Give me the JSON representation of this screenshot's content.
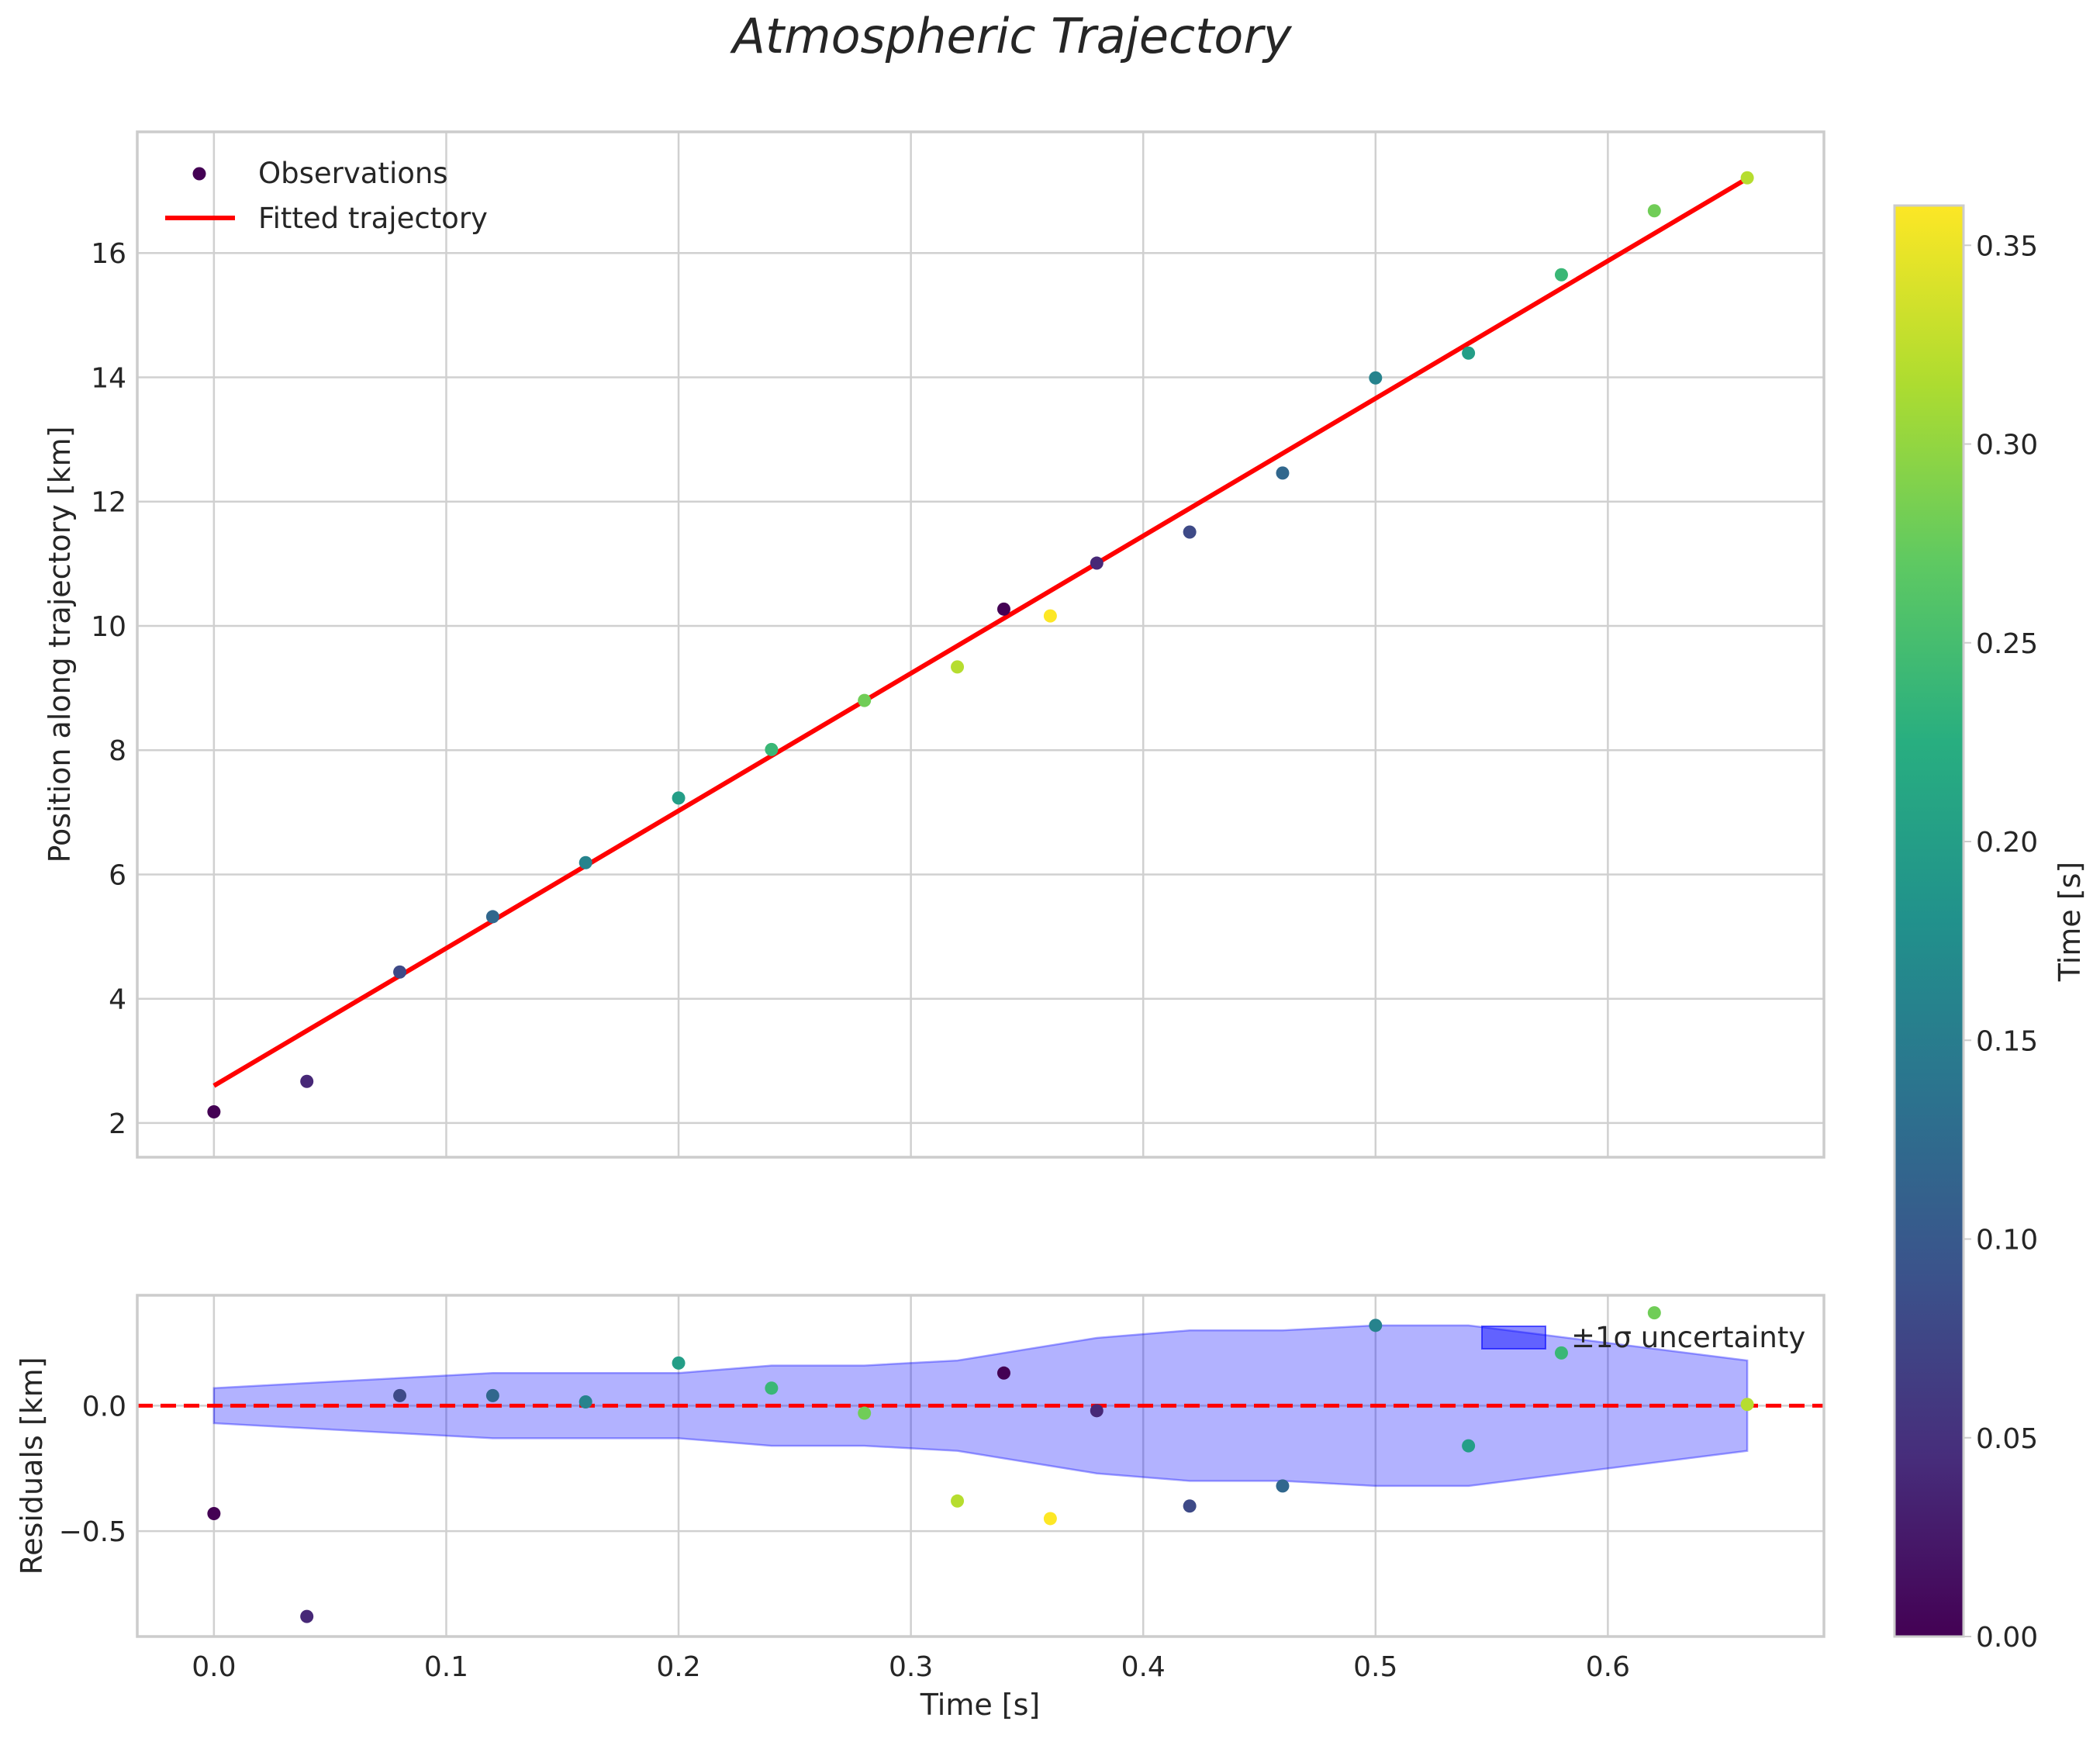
{
  "title": "Atmospheric Trajectory",
  "chart_data": [
    {
      "type": "scatter",
      "panel": "top",
      "xlabel": "",
      "ylabel": "Position along trajectory [km]",
      "xlim": [
        -0.033,
        0.693
      ],
      "ylim": [
        1.45,
        17.95
      ],
      "xticks": [
        0.0,
        0.1,
        0.2,
        0.3,
        0.4,
        0.5,
        0.6
      ],
      "yticks": [
        2,
        4,
        6,
        8,
        10,
        12,
        14,
        16
      ],
      "ytick_labels": [
        "2",
        "4",
        "6",
        "8",
        "10",
        "12",
        "14",
        "16"
      ],
      "legend": [
        "Observations",
        "Fitted trajectory"
      ],
      "legend_position": "top-left",
      "observations": {
        "name": "Observations",
        "points": [
          {
            "x": 0.0,
            "y": 2.18,
            "c": 0.0
          },
          {
            "x": 0.04,
            "y": 2.67,
            "c": 0.04
          },
          {
            "x": 0.08,
            "y": 4.43,
            "c": 0.08
          },
          {
            "x": 0.12,
            "y": 5.32,
            "c": 0.12
          },
          {
            "x": 0.16,
            "y": 6.19,
            "c": 0.16
          },
          {
            "x": 0.2,
            "y": 7.23,
            "c": 0.2
          },
          {
            "x": 0.24,
            "y": 8.01,
            "c": 0.24
          },
          {
            "x": 0.28,
            "y": 8.8,
            "c": 0.28
          },
          {
            "x": 0.32,
            "y": 9.34,
            "c": 0.32
          },
          {
            "x": 0.34,
            "y": 10.27,
            "c": 0.0
          },
          {
            "x": 0.36,
            "y": 10.16,
            "c": 0.36
          },
          {
            "x": 0.38,
            "y": 11.01,
            "c": 0.04
          },
          {
            "x": 0.42,
            "y": 11.51,
            "c": 0.08
          },
          {
            "x": 0.46,
            "y": 12.46,
            "c": 0.12
          },
          {
            "x": 0.5,
            "y": 13.99,
            "c": 0.16
          },
          {
            "x": 0.54,
            "y": 14.39,
            "c": 0.2
          },
          {
            "x": 0.58,
            "y": 15.65,
            "c": 0.24
          },
          {
            "x": 0.62,
            "y": 16.68,
            "c": 0.28
          },
          {
            "x": 0.66,
            "y": 17.21,
            "c": 0.32
          }
        ]
      },
      "fit": {
        "name": "Fitted trajectory",
        "color": "#ff0000",
        "x": [
          0.0,
          0.66
        ],
        "y": [
          2.6,
          17.2
        ]
      }
    },
    {
      "type": "scatter",
      "panel": "bottom",
      "xlabel": "Time [s]",
      "ylabel": "Residuals [km]",
      "xlim": [
        -0.033,
        0.693
      ],
      "ylim": [
        -0.92,
        0.44
      ],
      "xticks": [
        0.0,
        0.1,
        0.2,
        0.3,
        0.4,
        0.5,
        0.6
      ],
      "xtick_labels": [
        "0.0",
        "0.1",
        "0.2",
        "0.3",
        "0.4",
        "0.5",
        "0.6"
      ],
      "yticks": [
        -0.5,
        0.0
      ],
      "ytick_labels": [
        "−0.5",
        "0.0"
      ],
      "legend": [
        "±1σ uncertainty"
      ],
      "legend_position": "top-right",
      "zero_line_color": "#ff0000",
      "residuals": [
        {
          "x": 0.0,
          "y": -0.43,
          "c": 0.0
        },
        {
          "x": 0.04,
          "y": -0.84,
          "c": 0.04
        },
        {
          "x": 0.08,
          "y": 0.04,
          "c": 0.08
        },
        {
          "x": 0.12,
          "y": 0.04,
          "c": 0.12
        },
        {
          "x": 0.16,
          "y": 0.015,
          "c": 0.16
        },
        {
          "x": 0.2,
          "y": 0.17,
          "c": 0.2
        },
        {
          "x": 0.24,
          "y": 0.07,
          "c": 0.24
        },
        {
          "x": 0.28,
          "y": -0.03,
          "c": 0.28
        },
        {
          "x": 0.32,
          "y": -0.38,
          "c": 0.32
        },
        {
          "x": 0.34,
          "y": 0.13,
          "c": 0.0
        },
        {
          "x": 0.36,
          "y": -0.45,
          "c": 0.36
        },
        {
          "x": 0.38,
          "y": -0.02,
          "c": 0.04
        },
        {
          "x": 0.42,
          "y": -0.4,
          "c": 0.08
        },
        {
          "x": 0.46,
          "y": -0.32,
          "c": 0.12
        },
        {
          "x": 0.5,
          "y": 0.32,
          "c": 0.16
        },
        {
          "x": 0.54,
          "y": -0.16,
          "c": 0.2
        },
        {
          "x": 0.58,
          "y": 0.21,
          "c": 0.24
        },
        {
          "x": 0.62,
          "y": 0.37,
          "c": 0.28
        },
        {
          "x": 0.66,
          "y": 0.005,
          "c": 0.32
        }
      ],
      "uncertainty": {
        "name": "±1σ uncertainty",
        "color": "#0000ff",
        "x": [
          0.0,
          0.12,
          0.2,
          0.24,
          0.28,
          0.32,
          0.38,
          0.42,
          0.46,
          0.5,
          0.54,
          0.66
        ],
        "sigma": [
          0.07,
          0.13,
          0.13,
          0.16,
          0.16,
          0.18,
          0.27,
          0.3,
          0.3,
          0.32,
          0.32,
          0.18
        ]
      }
    }
  ],
  "colorbar": {
    "label": "Time [s]",
    "colormap": "viridis",
    "range": [
      0.0,
      0.36
    ],
    "ticks": [
      0.0,
      0.05,
      0.1,
      0.15,
      0.2,
      0.25,
      0.3,
      0.35
    ],
    "tick_labels": [
      "0.00",
      "0.05",
      "0.10",
      "0.15",
      "0.20",
      "0.25",
      "0.30",
      "0.35"
    ]
  }
}
